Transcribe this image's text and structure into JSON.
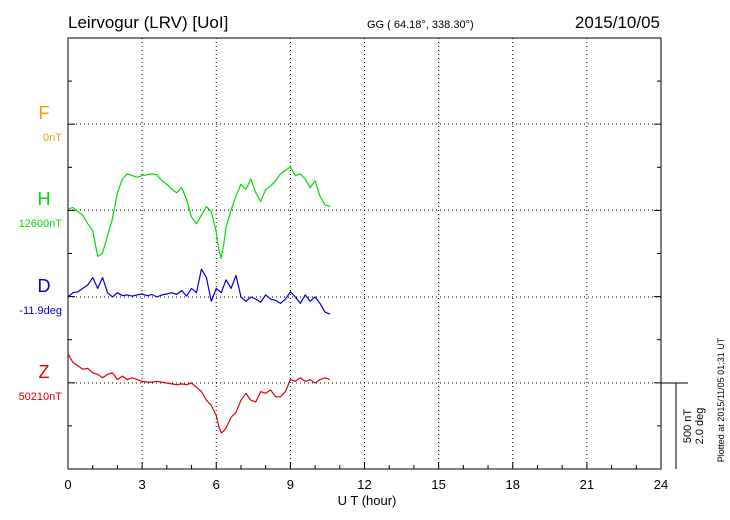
{
  "header": {
    "station": "Leirvogur (LRV)  [UoI]",
    "coords": "GG ( 64.18°, 338.30°)",
    "date": "2015/10/05"
  },
  "footer": {
    "plotted": "Plotted at 2015/11/05 01:31 UT"
  },
  "chart_data": {
    "type": "line",
    "xlabel": "U T (hour)",
    "xlim": [
      0,
      24
    ],
    "x_ticks": [
      0,
      3,
      6,
      9,
      12,
      15,
      18,
      21,
      24
    ],
    "scale_bar": {
      "line1": "500 nT",
      "line2": "2.0 deg"
    },
    "colors": {
      "F": "#f0a000",
      "H": "#00dd00",
      "D": "#0000cc",
      "Z": "#dd0000"
    },
    "series": [
      {
        "name": "F",
        "baseline": "0nT",
        "x": [],
        "y": []
      },
      {
        "name": "H",
        "baseline": "12600nT",
        "x": [
          0,
          0.2,
          0.4,
          0.6,
          0.8,
          1.0,
          1.2,
          1.4,
          1.6,
          1.8,
          2.0,
          2.2,
          2.4,
          2.6,
          2.8,
          3.0,
          3.2,
          3.4,
          3.6,
          3.8,
          4.0,
          4.2,
          4.4,
          4.6,
          4.8,
          5.0,
          5.2,
          5.4,
          5.6,
          5.8,
          6.0,
          6.1,
          6.2,
          6.3,
          6.4,
          6.6,
          6.8,
          7.0,
          7.2,
          7.4,
          7.6,
          7.8,
          8.0,
          8.2,
          8.4,
          8.6,
          8.8,
          9.0,
          9.2,
          9.4,
          9.6,
          9.8,
          10.0,
          10.2,
          10.4,
          10.6
        ],
        "y": [
          5,
          15,
          -10,
          -30,
          -80,
          -120,
          -270,
          -250,
          -150,
          -50,
          100,
          180,
          210,
          200,
          190,
          200,
          205,
          210,
          205,
          170,
          150,
          120,
          100,
          130,
          60,
          -40,
          -80,
          -30,
          20,
          -10,
          -130,
          -230,
          -280,
          -200,
          -100,
          0,
          80,
          150,
          120,
          180,
          100,
          50,
          120,
          140,
          170,
          210,
          230,
          250,
          200,
          210,
          180,
          130,
          170,
          80,
          30,
          20
        ]
      },
      {
        "name": "D",
        "baseline": "-11.9deg",
        "x": [
          0,
          0.2,
          0.4,
          0.6,
          0.8,
          1.0,
          1.2,
          1.4,
          1.6,
          1.8,
          2.0,
          2.2,
          2.4,
          2.6,
          2.8,
          3.0,
          3.2,
          3.4,
          3.6,
          3.8,
          4.0,
          4.2,
          4.4,
          4.6,
          4.8,
          5.0,
          5.2,
          5.4,
          5.6,
          5.8,
          6.0,
          6.2,
          6.4,
          6.6,
          6.8,
          7.0,
          7.2,
          7.4,
          7.6,
          7.8,
          8.0,
          8.2,
          8.4,
          8.6,
          8.8,
          9.0,
          9.2,
          9.4,
          9.6,
          9.8,
          10.0,
          10.2,
          10.4,
          10.6
        ],
        "y": [
          0,
          0.1,
          0.12,
          0.2,
          0.28,
          0.45,
          0.2,
          0.45,
          0.1,
          0.0,
          0.1,
          0.03,
          0.05,
          0.02,
          0.05,
          0.07,
          0.03,
          0.06,
          0.0,
          0.05,
          0.07,
          0.1,
          0.06,
          0.15,
          0.02,
          0.2,
          0.1,
          0.65,
          0.45,
          -0.1,
          0.2,
          0.1,
          0.4,
          0.2,
          0.5,
          0.0,
          -0.1,
          0.0,
          -0.05,
          -0.12,
          0.05,
          -0.05,
          -0.08,
          -0.15,
          -0.05,
          0.12,
          0.0,
          -0.15,
          0.05,
          -0.1,
          0.0,
          -0.15,
          -0.35,
          -0.4
        ]
      },
      {
        "name": "Z",
        "baseline": "50210nT",
        "x": [
          0,
          0.2,
          0.4,
          0.6,
          0.8,
          1.0,
          1.2,
          1.4,
          1.6,
          1.8,
          2.0,
          2.2,
          2.4,
          2.6,
          2.8,
          3.0,
          3.2,
          3.4,
          3.6,
          3.8,
          4.0,
          4.2,
          4.4,
          4.6,
          4.8,
          5.0,
          5.2,
          5.4,
          5.6,
          5.8,
          6.0,
          6.1,
          6.2,
          6.3,
          6.4,
          6.6,
          6.8,
          7.0,
          7.2,
          7.4,
          7.6,
          7.8,
          8.0,
          8.2,
          8.4,
          8.6,
          8.8,
          9.0,
          9.2,
          9.4,
          9.6,
          9.8,
          10.0,
          10.2,
          10.4,
          10.6
        ],
        "y": [
          170,
          120,
          100,
          80,
          85,
          60,
          50,
          30,
          50,
          60,
          20,
          40,
          20,
          30,
          20,
          10,
          5,
          5,
          10,
          5,
          0,
          -5,
          -10,
          -5,
          -10,
          0,
          -25,
          -50,
          -100,
          -130,
          -190,
          -250,
          -290,
          -280,
          -260,
          -200,
          -170,
          -100,
          -60,
          -100,
          -110,
          -50,
          -60,
          -40,
          -80,
          -80,
          -50,
          20,
          10,
          30,
          10,
          20,
          0,
          20,
          30,
          20
        ]
      }
    ]
  }
}
